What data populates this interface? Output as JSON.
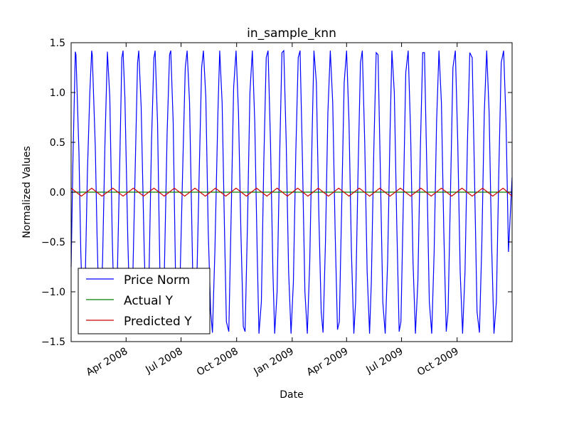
{
  "chart_data": {
    "type": "line",
    "title": "in_sample_knn",
    "xlabel": "Date",
    "ylabel": "Normalized Values",
    "xlim": [
      "2008-01-01",
      "2009-12-31"
    ],
    "ylim": [
      -1.5,
      1.5
    ],
    "yticks": [
      -1.5,
      -1.0,
      -0.5,
      0.0,
      0.5,
      1.0,
      1.5
    ],
    "ytick_labels": [
      "−1.5",
      "−1.0",
      "−0.5",
      "0.0",
      "0.5",
      "1.0",
      "1.5"
    ],
    "xticks": [
      "2008-04-01",
      "2008-07-01",
      "2008-10-01",
      "2009-01-01",
      "2009-04-01",
      "2009-07-01",
      "2009-10-01"
    ],
    "xtick_labels": [
      "Apr 2008",
      "Jul 2008",
      "Oct 2008",
      "Jan 2009",
      "Apr 2009",
      "Jul 2009",
      "Oct 2009"
    ],
    "grid": false,
    "legend_position": "bottom-left",
    "series": [
      {
        "name": "Price Norm",
        "color": "#0000ff",
        "points": [
          [
            "2008-01-01",
            -0.75
          ],
          [
            "2008-01-04",
            0.3
          ],
          [
            "2008-01-07",
            1.15
          ],
          [
            "2008-01-08",
            1.41
          ],
          [
            "2008-01-09",
            1.38
          ],
          [
            "2008-01-14",
            0.4
          ],
          [
            "2008-01-17",
            -0.6
          ],
          [
            "2008-01-21",
            -1.4
          ],
          [
            "2008-01-24",
            -1.0
          ],
          [
            "2008-01-28",
            0.2
          ],
          [
            "2008-02-01",
            1.0
          ],
          [
            "2008-02-04",
            1.42
          ],
          [
            "2008-02-05",
            1.38
          ],
          [
            "2008-02-10",
            0.45
          ],
          [
            "2008-02-13",
            -0.45
          ],
          [
            "2008-02-17",
            -1.38
          ],
          [
            "2008-02-22",
            -0.7
          ],
          [
            "2008-02-26",
            0.5
          ],
          [
            "2008-03-01",
            1.41
          ],
          [
            "2008-03-05",
            0.95
          ],
          [
            "2008-03-09",
            -0.45
          ],
          [
            "2008-03-13",
            -1.4
          ],
          [
            "2008-03-17",
            -1.0
          ],
          [
            "2008-03-22",
            0.45
          ],
          [
            "2008-03-25",
            1.35
          ],
          [
            "2008-03-27",
            1.42
          ],
          [
            "2008-03-30",
            0.95
          ],
          [
            "2008-04-04",
            -0.5
          ],
          [
            "2008-04-08",
            -1.4
          ],
          [
            "2008-04-12",
            -0.9
          ],
          [
            "2008-04-17",
            0.5
          ],
          [
            "2008-04-20",
            1.3
          ],
          [
            "2008-04-22",
            1.42
          ],
          [
            "2008-04-26",
            0.85
          ],
          [
            "2008-05-01",
            -0.6
          ],
          [
            "2008-05-05",
            -1.4
          ],
          [
            "2008-05-09",
            -0.8
          ],
          [
            "2008-05-13",
            0.5
          ],
          [
            "2008-05-17",
            1.35
          ],
          [
            "2008-05-19",
            1.42
          ],
          [
            "2008-05-23",
            0.7
          ],
          [
            "2008-05-27",
            -0.8
          ],
          [
            "2008-05-31",
            -1.41
          ],
          [
            "2008-06-03",
            -0.9
          ],
          [
            "2008-06-08",
            0.6
          ],
          [
            "2008-06-12",
            1.38
          ],
          [
            "2008-06-14",
            1.42
          ],
          [
            "2008-06-18",
            0.7
          ],
          [
            "2008-06-22",
            -0.9
          ],
          [
            "2008-06-26",
            -1.42
          ],
          [
            "2008-06-29",
            -0.95
          ],
          [
            "2008-07-04",
            0.3
          ],
          [
            "2008-07-08",
            1.25
          ],
          [
            "2008-07-11",
            1.42
          ],
          [
            "2008-07-15",
            0.9
          ],
          [
            "2008-07-19",
            -0.4
          ],
          [
            "2008-07-22",
            -1.4
          ],
          [
            "2008-07-26",
            -1.2
          ],
          [
            "2008-07-31",
            0.2
          ],
          [
            "2008-08-04",
            1.25
          ],
          [
            "2008-08-07",
            1.42
          ],
          [
            "2008-08-11",
            0.95
          ],
          [
            "2008-08-15",
            -0.4
          ],
          [
            "2008-08-19",
            -1.2
          ],
          [
            "2008-08-22",
            -1.41
          ],
          [
            "2008-08-26",
            -0.6
          ],
          [
            "2008-08-31",
            0.8
          ],
          [
            "2008-09-03",
            1.42
          ],
          [
            "2008-09-07",
            0.9
          ],
          [
            "2008-09-11",
            -0.4
          ],
          [
            "2008-09-14",
            -1.3
          ],
          [
            "2008-09-18",
            -1.4
          ],
          [
            "2008-09-22",
            -0.2
          ],
          [
            "2008-09-26",
            1.05
          ],
          [
            "2008-09-30",
            1.42
          ],
          [
            "2008-10-04",
            0.8
          ],
          [
            "2008-10-08",
            -0.4
          ],
          [
            "2008-10-12",
            -1.35
          ],
          [
            "2008-10-15",
            -1.4
          ],
          [
            "2008-10-19",
            -0.3
          ],
          [
            "2008-10-23",
            1.0
          ],
          [
            "2008-10-27",
            1.42
          ],
          [
            "2008-10-31",
            0.7
          ],
          [
            "2008-11-04",
            -0.6
          ],
          [
            "2008-11-07",
            -1.42
          ],
          [
            "2008-11-11",
            -1.1
          ],
          [
            "2008-11-15",
            0.3
          ],
          [
            "2008-11-19",
            1.35
          ],
          [
            "2008-11-22",
            1.42
          ],
          [
            "2008-11-26",
            0.5
          ],
          [
            "2008-11-30",
            -0.8
          ],
          [
            "2008-12-03",
            -1.42
          ],
          [
            "2008-12-07",
            -1.0
          ],
          [
            "2008-12-11",
            0.3
          ],
          [
            "2008-12-15",
            1.4
          ],
          [
            "2008-12-18",
            1.42
          ],
          [
            "2008-12-22",
            0.5
          ],
          [
            "2008-12-26",
            -0.8
          ],
          [
            "2008-12-30",
            -1.42
          ],
          [
            "2009-01-03",
            -0.9
          ],
          [
            "2009-01-07",
            0.4
          ],
          [
            "2009-01-11",
            1.35
          ],
          [
            "2009-01-14",
            1.42
          ],
          [
            "2009-01-18",
            0.3
          ],
          [
            "2009-01-22",
            -1.0
          ],
          [
            "2009-01-26",
            -1.42
          ],
          [
            "2009-01-30",
            -0.7
          ],
          [
            "2009-02-03",
            0.6
          ],
          [
            "2009-02-06",
            1.42
          ],
          [
            "2009-02-10",
            1.1
          ],
          [
            "2009-02-14",
            -0.2
          ],
          [
            "2009-02-18",
            -1.2
          ],
          [
            "2009-02-21",
            -1.41
          ],
          [
            "2009-02-25",
            -0.5
          ],
          [
            "2009-03-01",
            0.8
          ],
          [
            "2009-03-05",
            1.42
          ],
          [
            "2009-03-09",
            0.9
          ],
          [
            "2009-03-13",
            -0.4
          ],
          [
            "2009-03-17",
            -1.38
          ],
          [
            "2009-03-20",
            -1.3
          ],
          [
            "2009-03-24",
            -0.1
          ],
          [
            "2009-03-28",
            1.1
          ],
          [
            "2009-04-01",
            1.42
          ],
          [
            "2009-04-05",
            0.7
          ],
          [
            "2009-04-09",
            -0.6
          ],
          [
            "2009-04-13",
            -1.42
          ],
          [
            "2009-04-16",
            -1.1
          ],
          [
            "2009-04-20",
            0.2
          ],
          [
            "2009-04-24",
            1.3
          ],
          [
            "2009-04-27",
            1.42
          ],
          [
            "2009-05-01",
            0.5
          ],
          [
            "2009-05-05",
            -0.8
          ],
          [
            "2009-05-09",
            -1.42
          ],
          [
            "2009-05-12",
            -0.9
          ],
          [
            "2009-05-16",
            0.4
          ],
          [
            "2009-05-20",
            1.4
          ],
          [
            "2009-05-23",
            1.38
          ],
          [
            "2009-05-27",
            0.2
          ],
          [
            "2009-05-31",
            -1.1
          ],
          [
            "2009-06-04",
            -1.42
          ],
          [
            "2009-06-08",
            -0.7
          ],
          [
            "2009-06-12",
            0.6
          ],
          [
            "2009-06-15",
            1.42
          ],
          [
            "2009-06-19",
            1.0
          ],
          [
            "2009-06-23",
            -0.3
          ],
          [
            "2009-06-27",
            -1.4
          ],
          [
            "2009-06-30",
            -1.3
          ],
          [
            "2009-07-04",
            -0.1
          ],
          [
            "2009-07-08",
            1.2
          ],
          [
            "2009-07-12",
            1.42
          ],
          [
            "2009-07-16",
            0.6
          ],
          [
            "2009-07-20",
            -0.7
          ],
          [
            "2009-07-24",
            -1.42
          ],
          [
            "2009-07-28",
            -0.9
          ],
          [
            "2009-08-01",
            0.4
          ],
          [
            "2009-08-05",
            1.4
          ],
          [
            "2009-08-08",
            1.4
          ],
          [
            "2009-08-12",
            0.2
          ],
          [
            "2009-08-16",
            -1.1
          ],
          [
            "2009-08-20",
            -1.42
          ],
          [
            "2009-08-24",
            -0.6
          ],
          [
            "2009-08-28",
            0.7
          ],
          [
            "2009-09-01",
            1.42
          ],
          [
            "2009-09-05",
            0.9
          ],
          [
            "2009-09-09",
            -0.4
          ],
          [
            "2009-09-13",
            -1.4
          ],
          [
            "2009-09-16",
            -1.2
          ],
          [
            "2009-09-20",
            0.0
          ],
          [
            "2009-09-24",
            1.25
          ],
          [
            "2009-09-28",
            1.42
          ],
          [
            "2009-10-02",
            0.5
          ],
          [
            "2009-10-06",
            -0.8
          ],
          [
            "2009-10-10",
            -1.42
          ],
          [
            "2009-10-14",
            -0.8
          ],
          [
            "2009-10-18",
            0.5
          ],
          [
            "2009-10-22",
            1.4
          ],
          [
            "2009-10-26",
            1.35
          ],
          [
            "2009-10-30",
            0.1
          ],
          [
            "2009-11-03",
            -1.2
          ],
          [
            "2009-11-07",
            -1.41
          ],
          [
            "2009-11-11",
            -0.5
          ],
          [
            "2009-11-15",
            0.8
          ],
          [
            "2009-11-19",
            1.42
          ],
          [
            "2009-11-23",
            0.8
          ],
          [
            "2009-11-27",
            -0.5
          ],
          [
            "2009-12-01",
            -1.42
          ],
          [
            "2009-12-05",
            -1.1
          ],
          [
            "2009-12-09",
            0.2
          ],
          [
            "2009-12-13",
            1.3
          ],
          [
            "2009-12-17",
            1.42
          ],
          [
            "2009-12-21",
            0.7
          ],
          [
            "2009-12-25",
            -0.6
          ],
          [
            "2009-12-31",
            0.15
          ]
        ]
      },
      {
        "name": "Actual Y",
        "color": "#008000",
        "points": [
          [
            "2008-01-01",
            0.0
          ],
          [
            "2009-12-31",
            0.0
          ]
        ]
      },
      {
        "name": "Predicted Y",
        "color": "#cc0000",
        "points": [
          [
            "2008-01-01",
            0.04
          ],
          [
            "2008-01-18",
            -0.04
          ],
          [
            "2008-02-04",
            0.04
          ],
          [
            "2008-02-21",
            -0.04
          ],
          [
            "2008-03-10",
            0.04
          ],
          [
            "2008-03-27",
            -0.04
          ],
          [
            "2008-04-13",
            0.04
          ],
          [
            "2008-04-30",
            -0.04
          ],
          [
            "2008-05-17",
            0.04
          ],
          [
            "2008-06-03",
            -0.04
          ],
          [
            "2008-06-20",
            0.04
          ],
          [
            "2008-07-07",
            -0.04
          ],
          [
            "2008-07-24",
            0.04
          ],
          [
            "2008-08-10",
            -0.04
          ],
          [
            "2008-08-27",
            0.04
          ],
          [
            "2008-09-13",
            -0.04
          ],
          [
            "2008-09-30",
            0.04
          ],
          [
            "2008-10-17",
            -0.04
          ],
          [
            "2008-11-03",
            0.04
          ],
          [
            "2008-11-20",
            -0.04
          ],
          [
            "2008-12-07",
            0.04
          ],
          [
            "2008-12-24",
            -0.04
          ],
          [
            "2009-01-10",
            0.04
          ],
          [
            "2009-01-27",
            -0.04
          ],
          [
            "2009-02-13",
            0.04
          ],
          [
            "2009-03-02",
            -0.04
          ],
          [
            "2009-03-19",
            0.04
          ],
          [
            "2009-04-05",
            -0.04
          ],
          [
            "2009-04-22",
            0.04
          ],
          [
            "2009-05-09",
            -0.04
          ],
          [
            "2009-05-26",
            0.04
          ],
          [
            "2009-06-12",
            -0.04
          ],
          [
            "2009-06-29",
            0.04
          ],
          [
            "2009-07-16",
            -0.04
          ],
          [
            "2009-08-02",
            0.04
          ],
          [
            "2009-08-19",
            -0.04
          ],
          [
            "2009-09-05",
            0.04
          ],
          [
            "2009-09-22",
            -0.04
          ],
          [
            "2009-10-09",
            0.04
          ],
          [
            "2009-10-26",
            -0.04
          ],
          [
            "2009-11-12",
            0.04
          ],
          [
            "2009-11-29",
            -0.04
          ],
          [
            "2009-12-16",
            0.04
          ],
          [
            "2009-12-31",
            -0.04
          ]
        ]
      }
    ]
  }
}
